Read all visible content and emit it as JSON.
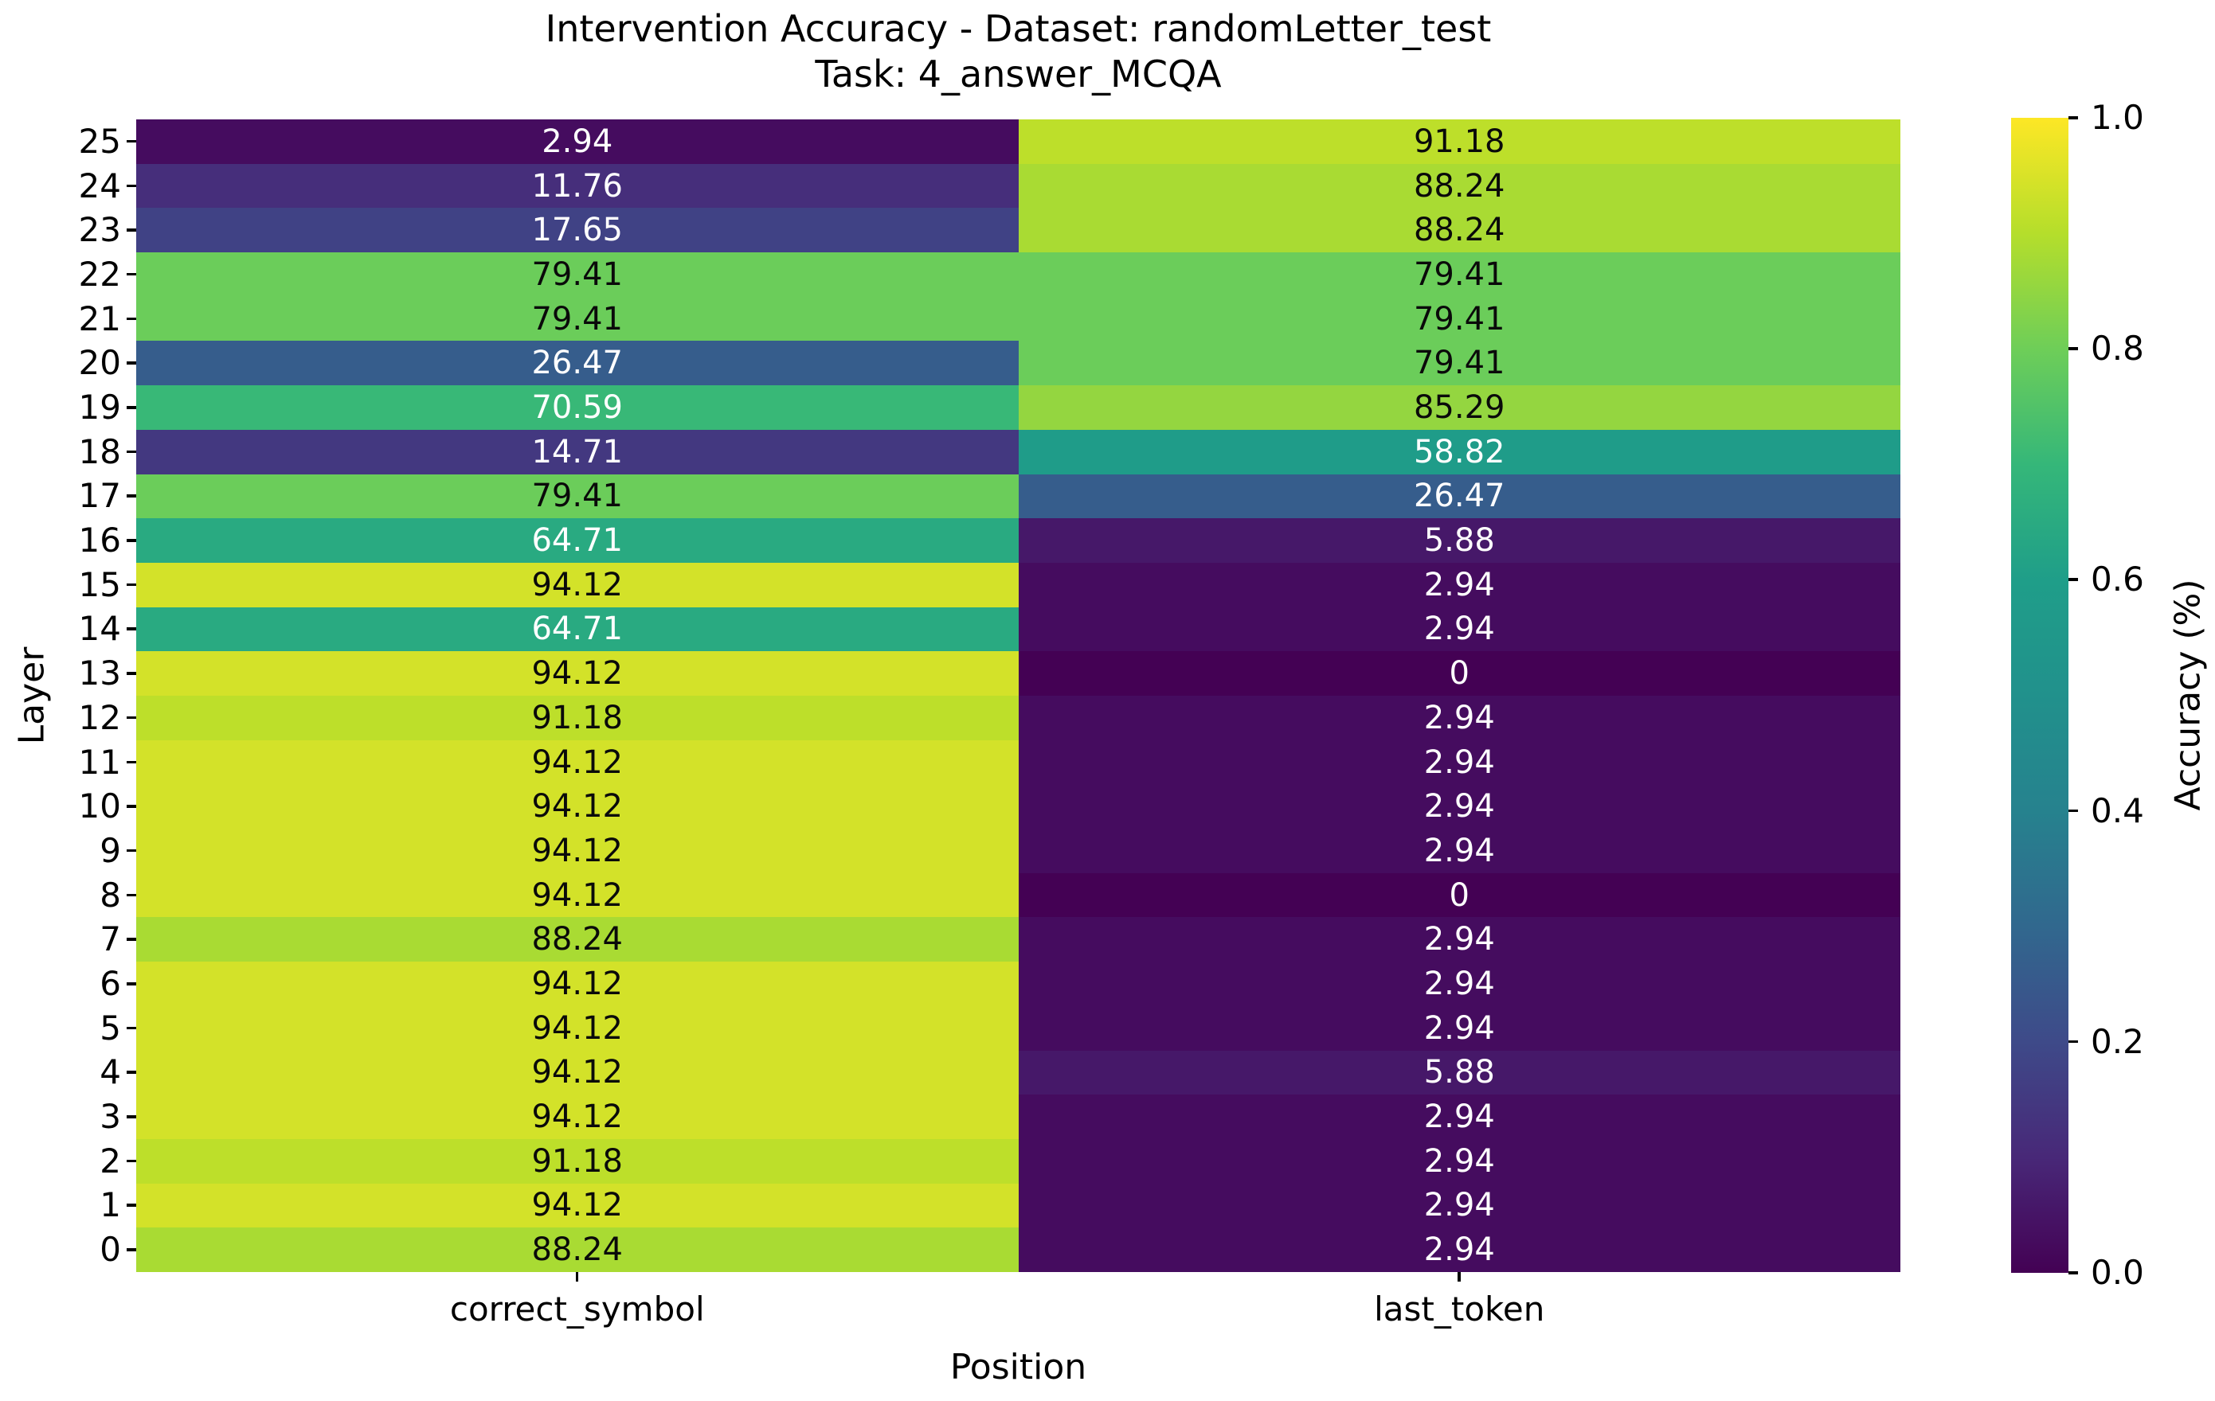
{
  "title": {
    "line1": "Intervention Accuracy - Dataset: randomLetter_test",
    "line2": "Task: 4_answer_MCQA"
  },
  "axes": {
    "xlabel": "Position",
    "ylabel": "Layer"
  },
  "colorbar": {
    "label": "Accuracy (%)",
    "ticks": [
      "1.0",
      "0.8",
      "0.6",
      "0.4",
      "0.2",
      "0.0"
    ]
  },
  "chart_data": {
    "type": "heatmap",
    "title": "Intervention Accuracy - Dataset: randomLetter_test\nTask: 4_answer_MCQA",
    "xlabel": "Position",
    "ylabel": "Layer",
    "columns": [
      "correct_symbol",
      "last_token"
    ],
    "rows": [
      25,
      24,
      23,
      22,
      21,
      20,
      19,
      18,
      17,
      16,
      15,
      14,
      13,
      12,
      11,
      10,
      9,
      8,
      7,
      6,
      5,
      4,
      3,
      2,
      1,
      0
    ],
    "values": [
      [
        2.94,
        91.18
      ],
      [
        11.76,
        88.24
      ],
      [
        17.65,
        88.24
      ],
      [
        79.41,
        79.41
      ],
      [
        79.41,
        79.41
      ],
      [
        26.47,
        79.41
      ],
      [
        70.59,
        85.29
      ],
      [
        14.71,
        58.82
      ],
      [
        79.41,
        26.47
      ],
      [
        64.71,
        5.88
      ],
      [
        94.12,
        2.94
      ],
      [
        64.71,
        2.94
      ],
      [
        94.12,
        0
      ],
      [
        91.18,
        2.94
      ],
      [
        94.12,
        2.94
      ],
      [
        94.12,
        2.94
      ],
      [
        94.12,
        2.94
      ],
      [
        94.12,
        0
      ],
      [
        88.24,
        2.94
      ],
      [
        94.12,
        2.94
      ],
      [
        94.12,
        2.94
      ],
      [
        94.12,
        5.88
      ],
      [
        94.12,
        2.94
      ],
      [
        91.18,
        2.94
      ],
      [
        94.12,
        2.94
      ],
      [
        88.24,
        2.94
      ]
    ],
    "colormap": "viridis",
    "colorbar_label": "Accuracy (%)",
    "colorbar_range": [
      0.0,
      1.0
    ],
    "legend_position": "right",
    "grid": false,
    "colors": {
      "viridis_stops": [
        "#440154",
        "#482878",
        "#3e4a89",
        "#31688e",
        "#26828e",
        "#21918c",
        "#1f9e89",
        "#35b779",
        "#6ece58",
        "#b5de2b",
        "#fde725"
      ],
      "annotation_dark": "#0a0a0a",
      "annotation_light": "#ffffff"
    }
  }
}
